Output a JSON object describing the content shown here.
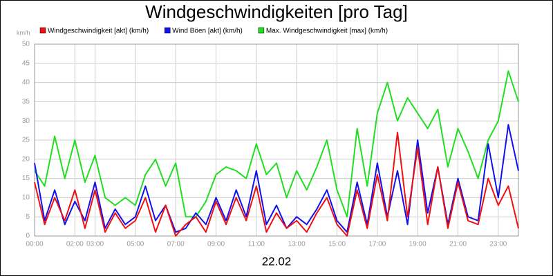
{
  "chart_data": {
    "type": "line",
    "title": "Windgeschwindigkeiten [pro Tag]",
    "y_unit": "km/h",
    "x_label": "22.02",
    "x": [
      0,
      0.5,
      1,
      1.5,
      2,
      2.5,
      3,
      3.5,
      4,
      4.5,
      5,
      5.5,
      6,
      6.5,
      7,
      7.5,
      8,
      8.5,
      9,
      9.5,
      10,
      10.5,
      11,
      11.5,
      12,
      12.5,
      13,
      13.5,
      14,
      14.5,
      15,
      15.5,
      16,
      16.5,
      17,
      17.5,
      18,
      18.5,
      19,
      19.5,
      20,
      20.5,
      21,
      21.5,
      22,
      22.5,
      23,
      23.5,
      24
    ],
    "series": [
      {
        "name": "Windgeschwindigkeit [akt] (km/h)",
        "color": "#ee1111",
        "values": [
          14,
          3,
          10,
          4,
          12,
          2,
          12,
          1,
          6,
          2,
          4,
          10,
          1,
          8,
          0,
          3,
          5,
          1,
          9,
          3,
          10,
          4,
          13,
          1,
          6,
          2,
          4,
          1,
          6,
          10,
          3,
          0,
          12,
          2,
          16,
          4,
          27,
          5,
          23,
          3,
          18,
          2,
          14,
          4,
          3,
          15,
          8,
          13,
          2
        ]
      },
      {
        "name": "Wind Böen [akt] (km/h)",
        "color": "#1111ee",
        "values": [
          19,
          4,
          12,
          3,
          9,
          4,
          14,
          2,
          7,
          3,
          5,
          13,
          4,
          8,
          1,
          2,
          6,
          3,
          10,
          4,
          12,
          5,
          17,
          3,
          8,
          2,
          5,
          3,
          7,
          12,
          4,
          1,
          14,
          3,
          19,
          5,
          17,
          3,
          25,
          6,
          18,
          3,
          15,
          5,
          4,
          24,
          10,
          29,
          17
        ]
      },
      {
        "name": "Max. Windgeschwindigkeit [max] (km/h)",
        "color": "#22dd22",
        "values": [
          17,
          13,
          26,
          15,
          25,
          14,
          21,
          10,
          8,
          10,
          8,
          16,
          20,
          13,
          19,
          5,
          5,
          9,
          16,
          18,
          17,
          15,
          24,
          16,
          19,
          10,
          17,
          12,
          18,
          25,
          12,
          5,
          28,
          13,
          32,
          40,
          30,
          36,
          32,
          28,
          33,
          18,
          28,
          22,
          15,
          25,
          30,
          43,
          35
        ]
      }
    ],
    "xlim": [
      0,
      24
    ],
    "xticks": [
      {
        "value": 0,
        "label": "00:00"
      },
      {
        "value": 2,
        "label": "02:00"
      },
      {
        "value": 3,
        "label": "03:00"
      },
      {
        "value": 5,
        "label": "05:00"
      },
      {
        "value": 7,
        "label": "07:00"
      },
      {
        "value": 9,
        "label": "09:00"
      },
      {
        "value": 11,
        "label": "11:00"
      },
      {
        "value": 13,
        "label": "13:00"
      },
      {
        "value": 15,
        "label": "15:00"
      },
      {
        "value": 17,
        "label": "17:00"
      },
      {
        "value": 19,
        "label": "19:00"
      },
      {
        "value": 21,
        "label": "21:00"
      },
      {
        "value": 23,
        "label": "23:00"
      }
    ],
    "ylim": [
      0,
      50
    ],
    "yticks": [
      0,
      5,
      10,
      15,
      20,
      25,
      30,
      35,
      40,
      45,
      50
    ],
    "grid": true
  }
}
